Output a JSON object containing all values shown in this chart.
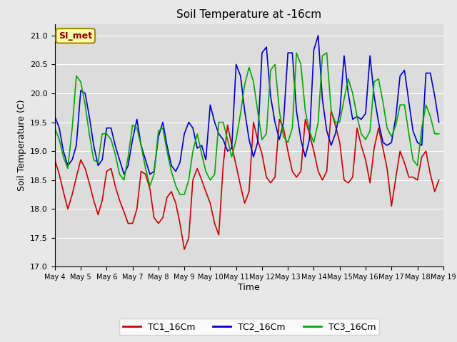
{
  "title": "Soil Temperature at -16cm",
  "xlabel": "Time",
  "ylabel": "Soil Temperature (C)",
  "ylim": [
    17.0,
    21.2
  ],
  "yticks": [
    17.0,
    17.5,
    18.0,
    18.5,
    19.0,
    19.5,
    20.0,
    20.5,
    21.0
  ],
  "xlim_days": [
    4,
    19
  ],
  "xtick_labels": [
    "May 4",
    "May 5",
    "May 6",
    "May 7",
    "May 8",
    "May 9",
    "May 10",
    "May 11",
    "May 12",
    "May 13",
    "May 14",
    "May 15",
    "May 16",
    "May 17",
    "May 18",
    "May 19"
  ],
  "fig_facecolor": "#e8e8e8",
  "axes_facecolor": "#dcdcdc",
  "grid_color": "#ffffff",
  "annotation_text": "SI_met",
  "annotation_facecolor": "#ffffaa",
  "annotation_edgecolor": "#aa8800",
  "annotation_textcolor": "#8b0000",
  "legend_labels": [
    "TC1_16Cm",
    "TC2_16Cm",
    "TC3_16Cm"
  ],
  "line_colors": [
    "#cc0000",
    "#0000cc",
    "#00aa00"
  ],
  "tc1_x": [
    4.0,
    4.17,
    4.33,
    4.5,
    4.67,
    4.83,
    5.0,
    5.17,
    5.33,
    5.5,
    5.67,
    5.83,
    6.0,
    6.17,
    6.33,
    6.5,
    6.67,
    6.83,
    7.0,
    7.17,
    7.33,
    7.5,
    7.67,
    7.83,
    8.0,
    8.17,
    8.33,
    8.5,
    8.67,
    8.83,
    9.0,
    9.17,
    9.33,
    9.5,
    9.67,
    9.83,
    10.0,
    10.17,
    10.33,
    10.5,
    10.67,
    10.83,
    11.0,
    11.17,
    11.33,
    11.5,
    11.67,
    11.83,
    12.0,
    12.17,
    12.33,
    12.5,
    12.67,
    12.83,
    13.0,
    13.17,
    13.33,
    13.5,
    13.67,
    13.83,
    14.0,
    14.17,
    14.33,
    14.5,
    14.67,
    14.83,
    15.0,
    15.17,
    15.33,
    15.5,
    15.67,
    15.83,
    16.0,
    16.17,
    16.33,
    16.5,
    16.67,
    16.83,
    17.0,
    17.17,
    17.33,
    17.5,
    17.67,
    17.83,
    18.0,
    18.17,
    18.33,
    18.5,
    18.67,
    18.83
  ],
  "tc1_y": [
    18.85,
    18.6,
    18.3,
    18.0,
    18.25,
    18.55,
    18.85,
    18.7,
    18.45,
    18.15,
    17.9,
    18.15,
    18.65,
    18.7,
    18.4,
    18.15,
    17.95,
    17.75,
    17.75,
    18.0,
    18.65,
    18.6,
    18.35,
    17.85,
    17.75,
    17.85,
    18.2,
    18.3,
    18.1,
    17.75,
    17.3,
    17.5,
    18.5,
    18.7,
    18.5,
    18.3,
    18.1,
    17.75,
    17.55,
    18.75,
    19.45,
    19.1,
    18.75,
    18.4,
    18.1,
    18.3,
    19.5,
    19.2,
    18.95,
    18.55,
    18.45,
    18.55,
    19.55,
    19.4,
    19.0,
    18.65,
    18.55,
    18.65,
    19.55,
    19.3,
    19.0,
    18.65,
    18.5,
    18.65,
    19.7,
    19.45,
    19.15,
    18.5,
    18.45,
    18.55,
    19.4,
    19.1,
    18.85,
    18.45,
    19.05,
    19.4,
    19.05,
    18.7,
    18.05,
    18.55,
    19.0,
    18.8,
    18.55,
    18.55,
    18.5,
    18.9,
    19.0,
    18.6,
    18.3,
    18.5
  ],
  "tc2_x": [
    4.0,
    4.17,
    4.33,
    4.5,
    4.67,
    4.83,
    5.0,
    5.17,
    5.33,
    5.5,
    5.67,
    5.83,
    6.0,
    6.17,
    6.33,
    6.5,
    6.67,
    6.83,
    7.0,
    7.17,
    7.33,
    7.5,
    7.67,
    7.83,
    8.0,
    8.17,
    8.33,
    8.5,
    8.67,
    8.83,
    9.0,
    9.17,
    9.33,
    9.5,
    9.67,
    9.83,
    10.0,
    10.17,
    10.33,
    10.5,
    10.67,
    10.83,
    11.0,
    11.17,
    11.33,
    11.5,
    11.67,
    11.83,
    12.0,
    12.17,
    12.33,
    12.5,
    12.67,
    12.83,
    13.0,
    13.17,
    13.33,
    13.5,
    13.67,
    13.83,
    14.0,
    14.17,
    14.33,
    14.5,
    14.67,
    14.83,
    15.0,
    15.17,
    15.33,
    15.5,
    15.67,
    15.83,
    16.0,
    16.17,
    16.33,
    16.5,
    16.67,
    16.83,
    17.0,
    17.17,
    17.33,
    17.5,
    17.67,
    17.83,
    18.0,
    18.17,
    18.33,
    18.5,
    18.67,
    18.83
  ],
  "tc2_y": [
    19.6,
    19.4,
    19.0,
    18.75,
    18.85,
    19.1,
    20.05,
    20.0,
    19.6,
    19.1,
    18.75,
    18.85,
    19.4,
    19.4,
    19.1,
    18.85,
    18.6,
    18.75,
    19.2,
    19.55,
    19.1,
    18.85,
    18.6,
    18.65,
    19.25,
    19.5,
    19.1,
    18.75,
    18.65,
    18.8,
    19.3,
    19.5,
    19.4,
    19.05,
    19.1,
    18.85,
    19.8,
    19.5,
    19.3,
    19.2,
    19.0,
    19.05,
    20.5,
    20.3,
    19.7,
    19.2,
    18.9,
    19.15,
    20.7,
    20.8,
    19.95,
    19.5,
    19.2,
    19.5,
    20.7,
    20.7,
    19.7,
    19.2,
    18.9,
    19.2,
    20.75,
    21.0,
    19.9,
    19.35,
    19.1,
    19.3,
    19.65,
    20.65,
    20.0,
    19.55,
    19.6,
    19.55,
    19.65,
    20.65,
    19.95,
    19.5,
    19.15,
    19.1,
    19.15,
    19.6,
    20.3,
    20.4,
    19.85,
    19.35,
    19.15,
    19.1,
    20.35,
    20.35,
    19.95,
    19.5
  ],
  "tc3_x": [
    4.0,
    4.17,
    4.33,
    4.5,
    4.67,
    4.83,
    5.0,
    5.17,
    5.33,
    5.5,
    5.67,
    5.83,
    6.0,
    6.17,
    6.33,
    6.5,
    6.67,
    6.83,
    7.0,
    7.17,
    7.33,
    7.5,
    7.67,
    7.83,
    8.0,
    8.17,
    8.33,
    8.5,
    8.67,
    8.83,
    9.0,
    9.17,
    9.33,
    9.5,
    9.67,
    9.83,
    10.0,
    10.17,
    10.33,
    10.5,
    10.67,
    10.83,
    11.0,
    11.17,
    11.33,
    11.5,
    11.67,
    11.83,
    12.0,
    12.17,
    12.33,
    12.5,
    12.67,
    12.83,
    13.0,
    13.17,
    13.33,
    13.5,
    13.67,
    13.83,
    14.0,
    14.17,
    14.33,
    14.5,
    14.67,
    14.83,
    15.0,
    15.17,
    15.33,
    15.5,
    15.67,
    15.83,
    16.0,
    16.17,
    16.33,
    16.5,
    16.67,
    16.83,
    17.0,
    17.17,
    17.33,
    17.5,
    17.67,
    17.83,
    18.0,
    18.17,
    18.33,
    18.5,
    18.67,
    18.83
  ],
  "tc3_y": [
    19.4,
    19.2,
    18.9,
    18.7,
    19.4,
    20.3,
    20.2,
    19.8,
    19.3,
    18.85,
    18.8,
    19.3,
    19.3,
    19.2,
    18.95,
    18.6,
    18.5,
    18.9,
    19.45,
    19.4,
    19.1,
    18.7,
    18.4,
    18.6,
    19.35,
    19.4,
    19.0,
    18.65,
    18.4,
    18.25,
    18.25,
    18.5,
    19.0,
    19.3,
    18.95,
    18.65,
    18.5,
    18.6,
    19.5,
    19.5,
    19.2,
    18.9,
    19.2,
    19.65,
    20.15,
    20.45,
    20.2,
    19.7,
    19.2,
    19.3,
    20.4,
    20.5,
    19.7,
    19.25,
    19.15,
    19.4,
    20.7,
    20.5,
    19.7,
    19.35,
    19.15,
    19.5,
    20.65,
    20.7,
    19.7,
    19.5,
    19.5,
    19.9,
    20.25,
    20.0,
    19.6,
    19.3,
    19.2,
    19.35,
    20.2,
    20.25,
    19.85,
    19.4,
    19.25,
    19.45,
    19.8,
    19.8,
    19.3,
    18.85,
    18.75,
    19.4,
    19.8,
    19.6,
    19.3,
    19.3
  ]
}
